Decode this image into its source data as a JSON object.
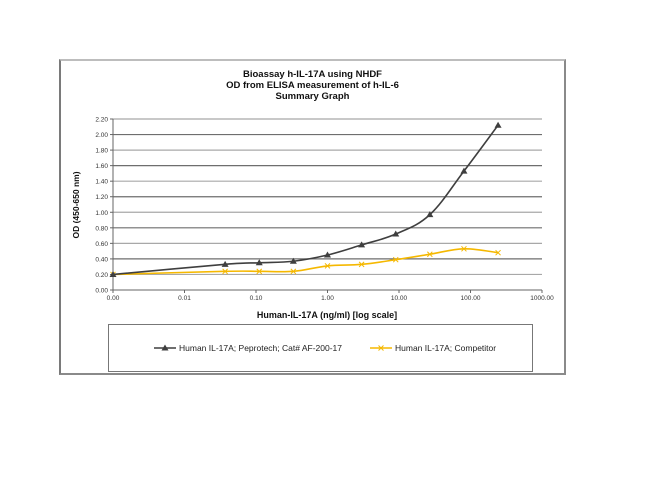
{
  "chart_data": {
    "type": "line",
    "title": "Bioassay h-IL-17A using NHDF",
    "subtitle_lines": [
      "OD from ELISA measurement of h-IL-6",
      "Summary Graph"
    ],
    "xlabel": "Human-IL-17A (ng/ml) [log scale]",
    "ylabel": "OD (450-650 nm)",
    "x_scale": "log",
    "xlim": [
      0.001,
      1000
    ],
    "ylim": [
      0,
      2.2
    ],
    "x_tick_labels": [
      "0.00",
      "0.01",
      "0.10",
      "1.00",
      "10.00",
      "100.00",
      "1000.00"
    ],
    "x_tick_values": [
      0.001,
      0.01,
      0.1,
      1,
      10,
      100,
      1000
    ],
    "y_tick_labels": [
      "0.00",
      "0.20",
      "0.40",
      "0.60",
      "0.80",
      "1.00",
      "1.20",
      "1.40",
      "1.60",
      "1.80",
      "2.00",
      "2.20"
    ],
    "y_tick_values": [
      0,
      0.2,
      0.4,
      0.6,
      0.8,
      1.0,
      1.2,
      1.4,
      1.6,
      1.8,
      2.0,
      2.2
    ],
    "grid": "horizontal",
    "legend_position": "bottom",
    "series": [
      {
        "name": "Human IL-17A; Peprotech; Cat# AF-200-17",
        "color": "#3f3f3f",
        "marker": "triangle",
        "x": [
          0.001,
          0.037,
          0.111,
          0.333,
          1.0,
          3.0,
          9.0,
          27.0,
          81.0,
          243.0
        ],
        "y": [
          0.2,
          0.33,
          0.35,
          0.37,
          0.45,
          0.58,
          0.72,
          0.97,
          1.53,
          2.12
        ]
      },
      {
        "name": "Human IL-17A; Competitor",
        "color": "#f5b800",
        "marker": "x",
        "x": [
          0.001,
          0.037,
          0.111,
          0.333,
          1.0,
          3.0,
          9.0,
          27.0,
          81.0,
          243.0
        ],
        "y": [
          0.2,
          0.24,
          0.24,
          0.24,
          0.31,
          0.33,
          0.39,
          0.46,
          0.53,
          0.48
        ]
      }
    ]
  },
  "legend": {
    "items": [
      {
        "label": "Human IL-17A; Peprotech; Cat# AF-200-17"
      },
      {
        "label": "Human IL-17A; Competitor"
      }
    ]
  }
}
